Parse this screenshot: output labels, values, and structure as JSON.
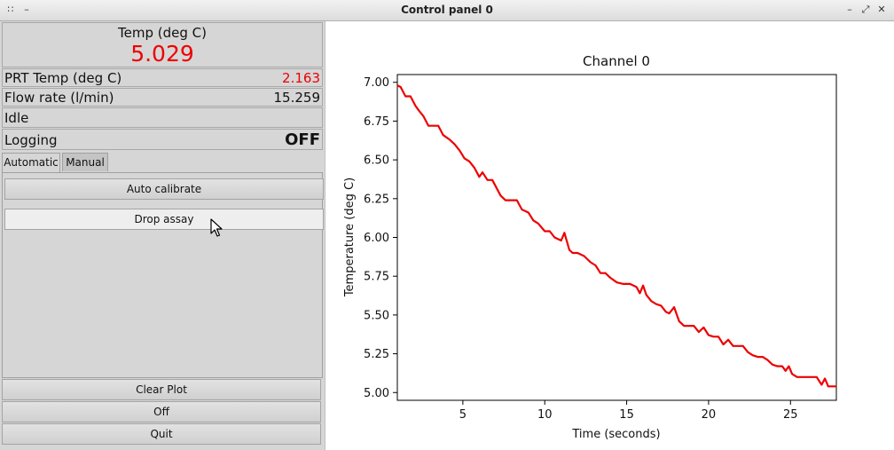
{
  "window": {
    "title": "Control panel 0"
  },
  "readouts": {
    "temp_label": "Temp (deg C)",
    "temp_value": "5.029",
    "prt_label": "PRT Temp (deg C)",
    "prt_value": "2.163",
    "flow_label": "Flow rate (l/min)",
    "flow_value": "15.259",
    "status": "Idle",
    "logging_label": "Logging",
    "logging_value": "OFF"
  },
  "tabs": [
    {
      "label": "Automatic",
      "active": true
    },
    {
      "label": "Manual",
      "active": false
    }
  ],
  "automatic": {
    "auto_calibrate_label": "Auto calibrate",
    "drop_assay_label": "Drop assay"
  },
  "footer_buttons": {
    "clear_plot_label": "Clear Plot",
    "off_label": "Off",
    "quit_label": "Quit"
  },
  "colors": {
    "highlight": "#ee0000",
    "line": "#ee0000"
  },
  "chart_data": {
    "type": "line",
    "title": "Channel 0",
    "xlabel": "Time (seconds)",
    "ylabel": "Temperature (deg C)",
    "xlim": [
      1,
      27.8
    ],
    "ylim": [
      4.95,
      7.05
    ],
    "xticks": [
      5,
      10,
      15,
      20,
      25
    ],
    "yticks": [
      5.0,
      5.25,
      5.5,
      5.75,
      6.0,
      6.25,
      6.5,
      6.75,
      7.0
    ],
    "ytick_labels": [
      "5.00",
      "5.25",
      "5.50",
      "5.75",
      "6.00",
      "6.25",
      "6.50",
      "6.75",
      "7.00"
    ],
    "grid": false,
    "series": [
      {
        "color": "#ee0000",
        "x": [
          1.0,
          1.2,
          1.5,
          1.8,
          2.1,
          2.3,
          2.6,
          2.9,
          3.2,
          3.5,
          3.8,
          4.2,
          4.5,
          4.8,
          5.1,
          5.4,
          5.7,
          6.0,
          6.2,
          6.5,
          6.8,
          7.1,
          7.3,
          7.6,
          8.0,
          8.3,
          8.6,
          9.0,
          9.3,
          9.6,
          10.0,
          10.3,
          10.6,
          11.0,
          11.2,
          11.5,
          11.7,
          12.0,
          12.4,
          12.8,
          13.1,
          13.4,
          13.7,
          14.0,
          14.4,
          14.8,
          15.2,
          15.6,
          15.8,
          16.0,
          16.2,
          16.5,
          16.8,
          17.1,
          17.4,
          17.6,
          17.9,
          18.2,
          18.5,
          18.8,
          19.1,
          19.4,
          19.7,
          20.0,
          20.3,
          20.6,
          20.9,
          21.2,
          21.5,
          21.8,
          22.1,
          22.4,
          22.7,
          23.0,
          23.3,
          23.6,
          23.9,
          24.2,
          24.5,
          24.7,
          24.9,
          25.1,
          25.4,
          25.7,
          26.0,
          26.3,
          26.6,
          26.9,
          27.1,
          27.3,
          27.5,
          27.8
        ],
        "y": [
          6.98,
          6.97,
          6.91,
          6.91,
          6.85,
          6.82,
          6.78,
          6.72,
          6.72,
          6.72,
          6.66,
          6.63,
          6.6,
          6.56,
          6.51,
          6.49,
          6.45,
          6.39,
          6.42,
          6.37,
          6.37,
          6.31,
          6.27,
          6.24,
          6.24,
          6.24,
          6.18,
          6.16,
          6.11,
          6.09,
          6.04,
          6.04,
          6.0,
          5.98,
          6.03,
          5.92,
          5.9,
          5.9,
          5.88,
          5.84,
          5.82,
          5.77,
          5.77,
          5.74,
          5.71,
          5.7,
          5.7,
          5.68,
          5.64,
          5.69,
          5.63,
          5.59,
          5.57,
          5.56,
          5.52,
          5.51,
          5.55,
          5.46,
          5.43,
          5.43,
          5.43,
          5.39,
          5.42,
          5.37,
          5.36,
          5.36,
          5.31,
          5.34,
          5.3,
          5.3,
          5.3,
          5.26,
          5.24,
          5.23,
          5.23,
          5.21,
          5.18,
          5.17,
          5.17,
          5.14,
          5.17,
          5.12,
          5.1,
          5.1,
          5.1,
          5.1,
          5.1,
          5.05,
          5.09,
          5.04,
          5.04,
          5.04
        ]
      }
    ]
  }
}
